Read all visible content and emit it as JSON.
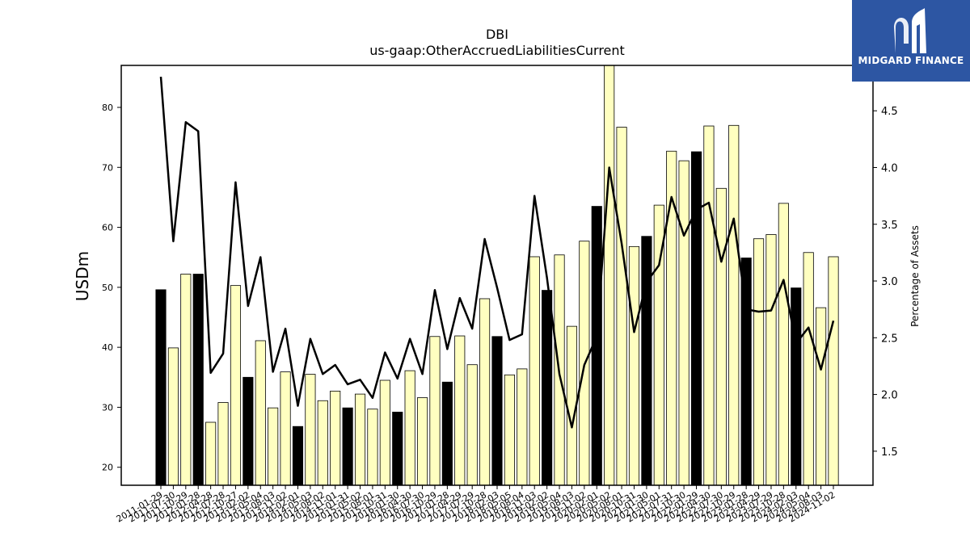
{
  "chart_data": {
    "type": "bar",
    "title": "DBI",
    "subtitle": "us-gaap:OtherAccruedLiabilitiesCurrent",
    "ylabel": "USDm",
    "y2label": "Percentage of Assets",
    "ylim": [
      17,
      87
    ],
    "y2lim": [
      1.2,
      4.9
    ],
    "yticks": [
      20,
      30,
      40,
      50,
      60,
      70,
      80
    ],
    "y2ticks": [
      1.5,
      2.0,
      2.5,
      3.0,
      3.5,
      4.0,
      4.5
    ],
    "grid": false,
    "categories": [
      "2011-01-29",
      "2011-07-30",
      "2011-10-29",
      "2012-01-28",
      "2012-04-28",
      "2012-07-28",
      "2012-10-27",
      "2013-02-02",
      "2013-05-04",
      "2013-08-03",
      "2013-11-02",
      "2014-02-01",
      "2014-05-03",
      "2014-08-02",
      "2014-11-01",
      "2015-01-31",
      "2015-05-02",
      "2015-08-01",
      "2015-10-31",
      "2016-01-30",
      "2016-04-30",
      "2016-07-30",
      "2016-10-29",
      "2017-01-28",
      "2017-04-29",
      "2017-07-29",
      "2017-10-28",
      "2018-02-03",
      "2018-05-05",
      "2018-08-04",
      "2018-11-03",
      "2019-02-02",
      "2019-05-04",
      "2019-08-03",
      "2019-11-02",
      "2020-02-01",
      "2020-05-02",
      "2020-08-01",
      "2020-10-31",
      "2021-01-30",
      "2021-05-01",
      "2021-07-31",
      "2021-10-30",
      "2022-01-29",
      "2022-04-30",
      "2022-07-30",
      "2022-10-29",
      "2023-01-28",
      "2023-04-29",
      "2023-07-29",
      "2023-10-28",
      "2024-02-03",
      "2024-05-04",
      "2024-08-03",
      "2024-11-02"
    ],
    "series": [
      {
        "type": "bar",
        "values": [
          49.6,
          39.9,
          52.2,
          52.2,
          27.5,
          30.8,
          50.3,
          35.0,
          41.1,
          29.9,
          35.9,
          26.8,
          35.5,
          31.1,
          32.7,
          29.9,
          32.2,
          29.7,
          34.5,
          29.2,
          36.1,
          31.6,
          41.8,
          34.2,
          41.9,
          37.1,
          48.1,
          41.8,
          35.4,
          36.4,
          55.1,
          49.5,
          55.4,
          43.5,
          57.7,
          63.5,
          88.0,
          76.7,
          56.8,
          58.5,
          63.7,
          72.7,
          71.1,
          72.6,
          76.9,
          66.5,
          77.0,
          54.9,
          58.1,
          58.8,
          64.0,
          49.9,
          55.8,
          46.6,
          55.1
        ],
        "highlight": [
          true,
          false,
          false,
          true,
          false,
          false,
          false,
          true,
          false,
          false,
          false,
          true,
          false,
          false,
          false,
          true,
          false,
          false,
          false,
          true,
          false,
          false,
          false,
          true,
          false,
          false,
          false,
          true,
          false,
          false,
          false,
          true,
          false,
          false,
          false,
          true,
          false,
          false,
          false,
          true,
          false,
          false,
          false,
          true,
          false,
          false,
          false,
          true,
          false,
          false,
          false,
          true,
          false,
          false,
          false
        ],
        "color": "#ffffc0",
        "highlight_color": "#000000"
      },
      {
        "type": "line",
        "axis": "y2",
        "values": [
          4.8,
          3.35,
          4.4,
          4.32,
          2.19,
          2.36,
          3.87,
          2.78,
          3.21,
          2.2,
          2.58,
          1.9,
          2.49,
          2.18,
          2.26,
          2.09,
          2.13,
          1.97,
          2.37,
          2.14,
          2.49,
          2.18,
          2.92,
          2.4,
          2.85,
          2.58,
          3.37,
          2.94,
          2.48,
          2.53,
          3.75,
          3.03,
          2.18,
          1.71,
          2.26,
          2.51,
          4.0,
          3.33,
          2.55,
          2.99,
          3.14,
          3.74,
          3.4,
          3.63,
          3.69,
          3.17,
          3.55,
          2.75,
          2.73,
          2.74,
          3.01,
          2.45,
          2.59,
          2.22,
          2.65
        ],
        "color": "#000000"
      }
    ]
  },
  "logo": {
    "text": "MIDGARD FINANCE",
    "background": "#2d56a3"
  }
}
